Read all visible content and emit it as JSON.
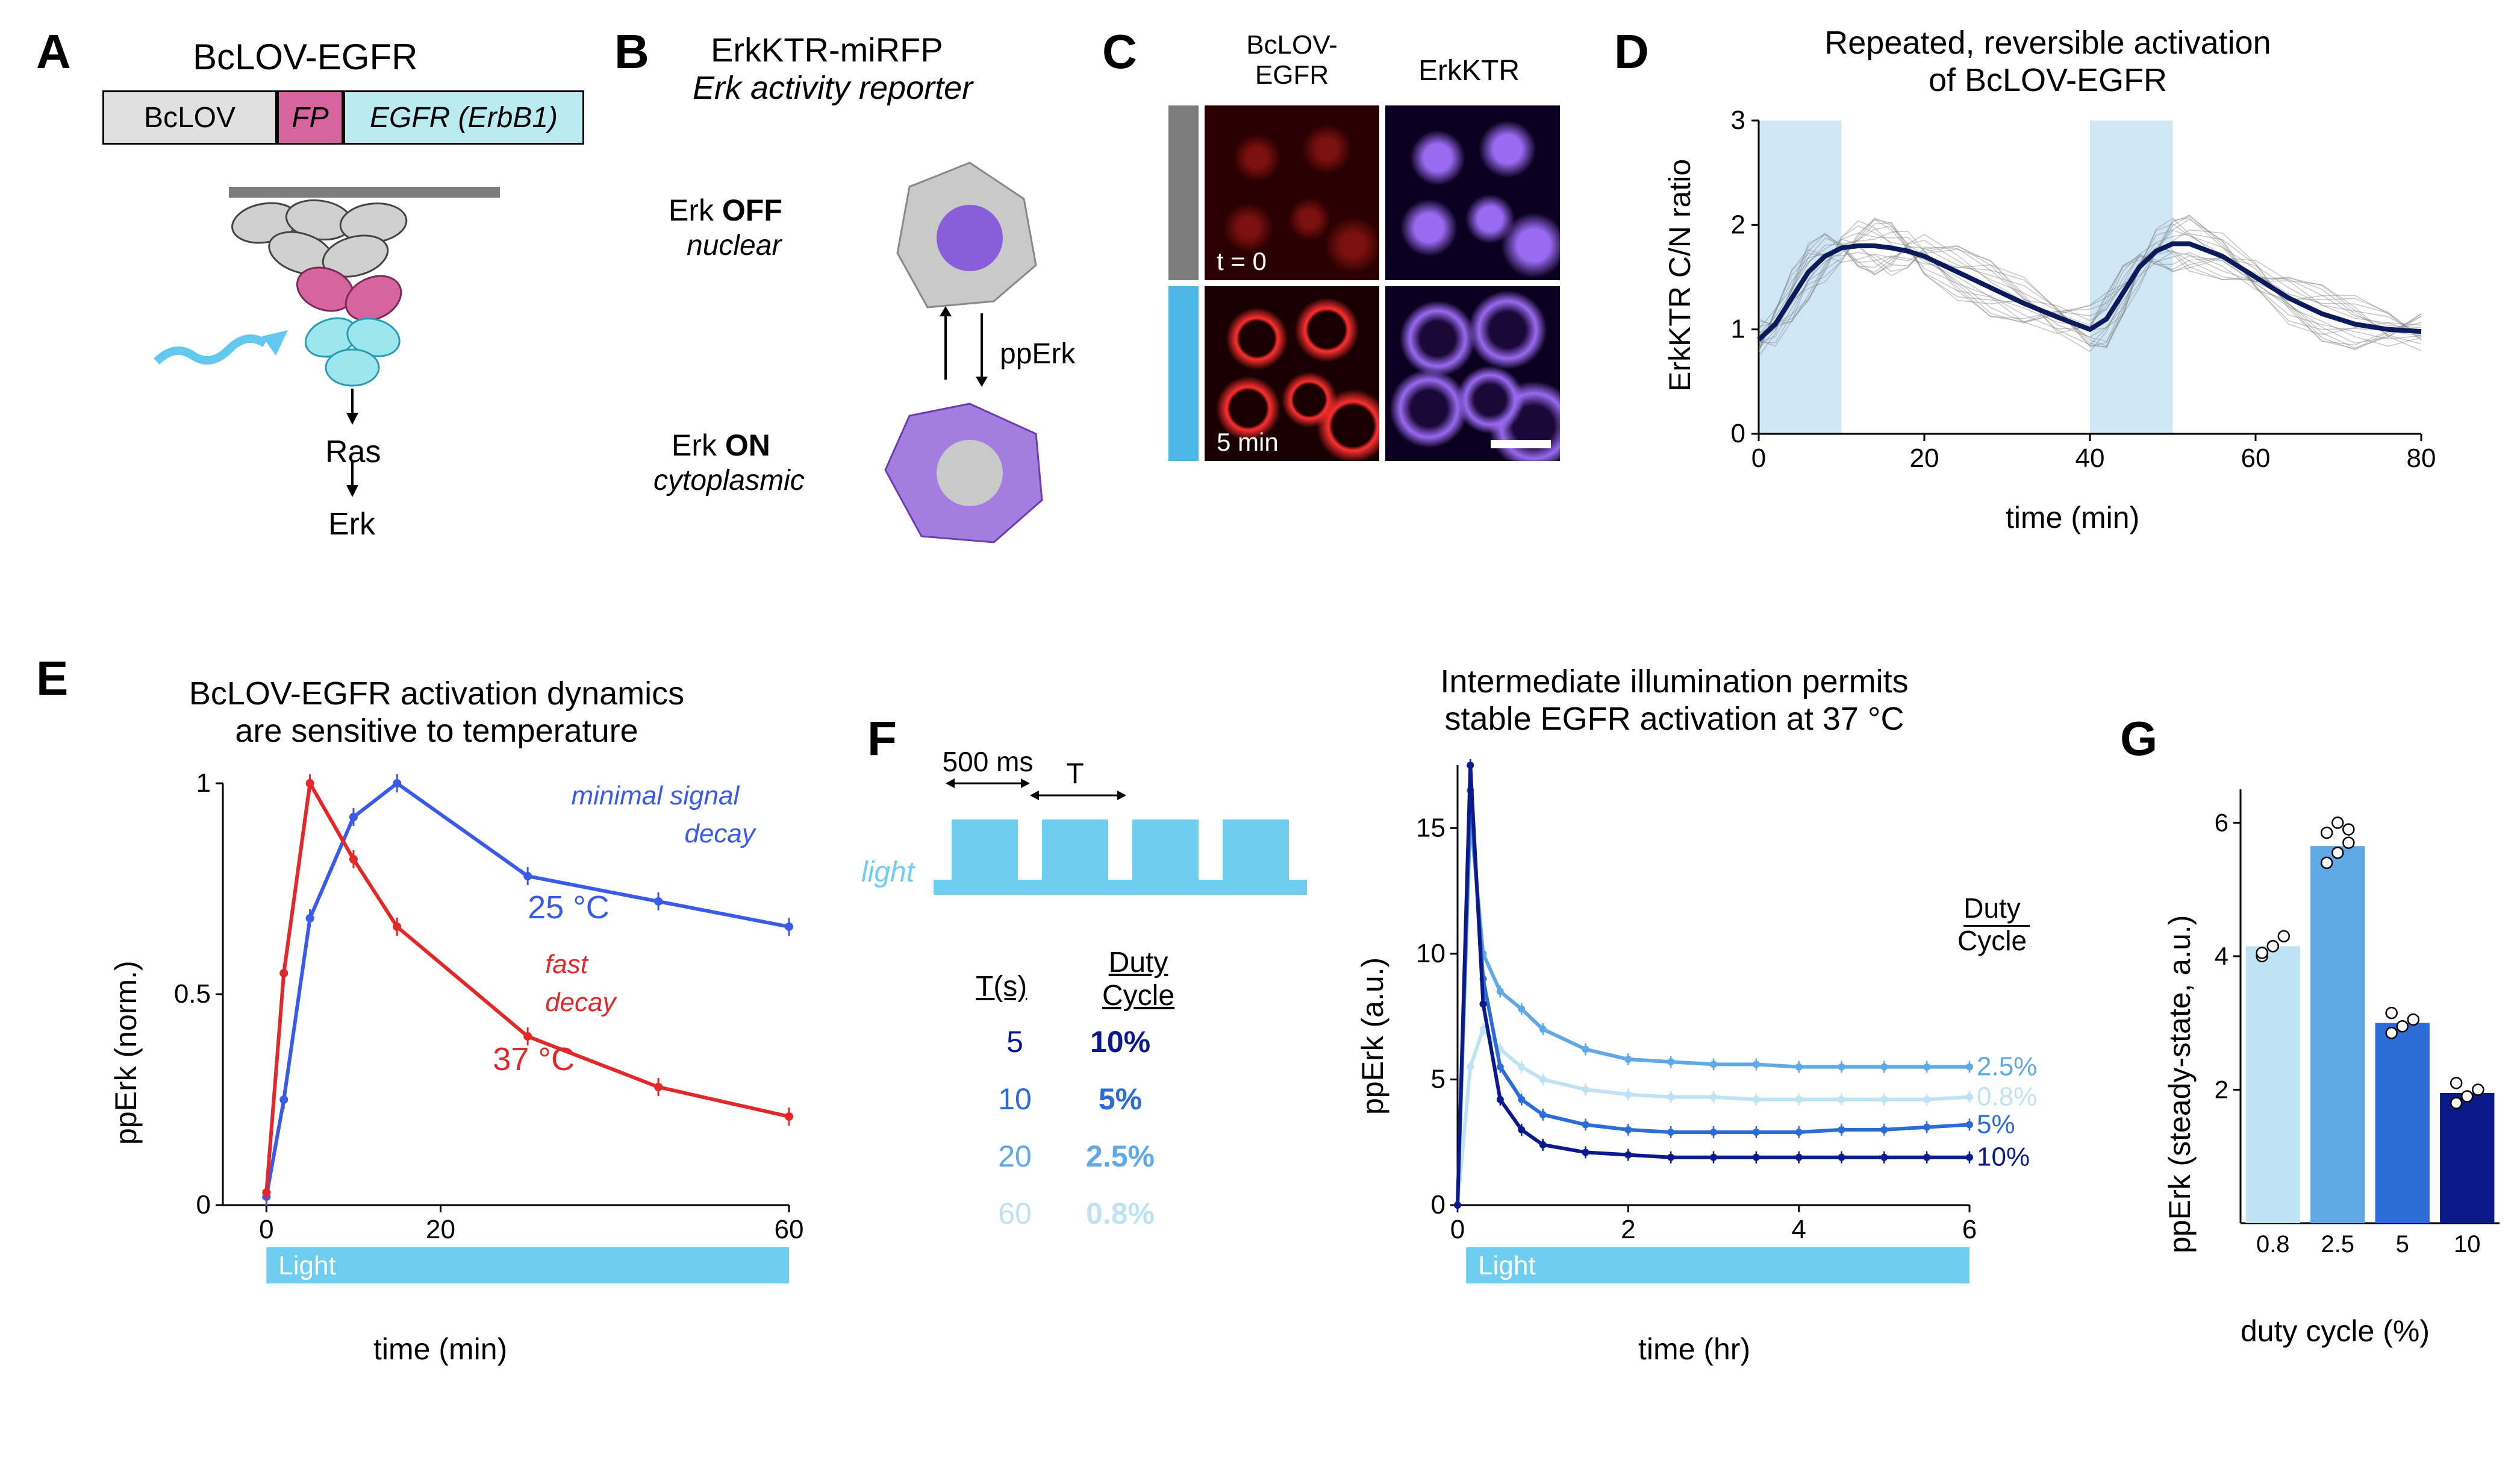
{
  "panelA": {
    "label": "A",
    "title": "BcLOV-EGFR",
    "construct": {
      "bclov": "BcLOV",
      "fp": "FP",
      "egfr": "EGFR (ErbB1)"
    },
    "cascade": [
      "Ras",
      "Erk"
    ],
    "colors": {
      "bclov_ellipse": "#d0d0d0",
      "fp_ellipse": "#d6649e",
      "egfr_ellipse": "#9ce6ef",
      "arrow": "#62c8ee",
      "membrane": "#7d7d7d",
      "pathway_text": "#000000"
    }
  },
  "panelB": {
    "label": "B",
    "title1": "ErkKTR-miRFP",
    "title2": "Erk activity reporter",
    "off_label1": "Erk ",
    "off_bold": "OFF",
    "off_label2": "nuclear",
    "on_label1": "Erk ",
    "on_bold": "ON",
    "on_label2": "cytoplasmic",
    "pperk": "ppErk",
    "colors": {
      "cell_body": "#c9c9c9",
      "nucleus_purple": "#8a5ed8",
      "body_purple": "#a57de0",
      "nucleus_grey": "#c9c9c9"
    }
  },
  "panelC": {
    "label": "C",
    "col1": "BcLOV-\nEGFR",
    "col2": "ErkKTR",
    "t0": "t = 0",
    "t5": "5 min",
    "bar_dark": "#7d7d7d",
    "bar_light": "#4db8e8",
    "scalebar_color": "#ffffff"
  },
  "panelD": {
    "label": "D",
    "title": "Repeated, reversible activation\nof BcLOV-EGFR",
    "ylabel": "ErkKTR C/N ratio",
    "xlabel": "time (min)",
    "yticks": [
      "0",
      "1",
      "2",
      "3"
    ],
    "xticks": [
      "0",
      "20",
      "40",
      "60",
      "80"
    ],
    "xlim": [
      0,
      80
    ],
    "ylim": [
      0,
      3
    ],
    "stim_windows": [
      [
        0,
        10
      ],
      [
        40,
        50
      ]
    ],
    "mean_line_color": "#0a1a5a",
    "trace_color": "#808080",
    "stim_color": "#cfe6f7",
    "mean_trace_x": [
      0,
      2,
      4,
      6,
      8,
      10,
      12,
      14,
      16,
      18,
      20,
      24,
      28,
      32,
      36,
      40,
      42,
      44,
      46,
      48,
      50,
      52,
      56,
      60,
      64,
      68,
      72,
      76,
      80
    ],
    "mean_trace_y": [
      0.9,
      1.05,
      1.3,
      1.55,
      1.7,
      1.78,
      1.8,
      1.8,
      1.78,
      1.75,
      1.7,
      1.55,
      1.4,
      1.25,
      1.12,
      1.0,
      1.1,
      1.35,
      1.6,
      1.75,
      1.82,
      1.82,
      1.7,
      1.5,
      1.3,
      1.15,
      1.05,
      1.0,
      0.98
    ]
  },
  "panelE": {
    "label": "E",
    "title": "BcLOV-EGFR activation dynamics\nare sensitive to temperature",
    "ylabel": "ppErk (norm.)",
    "xlabel": "time (min)",
    "yticks": [
      "0",
      "0.5",
      "1"
    ],
    "xticks": [
      "0",
      "20",
      "60"
    ],
    "xlim": [
      -5,
      60
    ],
    "ylim": [
      0,
      1
    ],
    "light_label": "Light",
    "light_color": "#6fcef0",
    "series": [
      {
        "label": "25 °C",
        "annot": "minimal signal\ndecay",
        "color": "#3a5ae8",
        "x": [
          0,
          2,
          5,
          10,
          15,
          30,
          45,
          60
        ],
        "y": [
          0.02,
          0.25,
          0.68,
          0.92,
          1.0,
          0.78,
          0.72,
          0.66
        ]
      },
      {
        "label": "37 °C",
        "annot": "fast\ndecay",
        "color": "#e22828",
        "x": [
          0,
          2,
          5,
          10,
          15,
          30,
          45,
          60
        ],
        "y": [
          0.03,
          0.55,
          1.0,
          0.82,
          0.66,
          0.4,
          0.28,
          0.21
        ]
      }
    ]
  },
  "panelF": {
    "label": "F",
    "pulse_label": "500 ms",
    "T_label": "T",
    "light_label_left": "light",
    "table_headers": [
      "T(s)",
      "Duty\nCycle"
    ],
    "table_rows": [
      {
        "T": "5",
        "dc": "10%",
        "color": "#0a1a8a"
      },
      {
        "T": "10",
        "dc": "5%",
        "color": "#2b6cd6"
      },
      {
        "T": "20",
        "dc": "2.5%",
        "color": "#5fa9e6"
      },
      {
        "T": "60",
        "dc": "0.8%",
        "color": "#bfe3f2"
      }
    ],
    "pulse_color": "#6fcef0",
    "chart_title": "Intermediate illumination permits\nstable EGFR activation at 37 °C",
    "ylabel": "ppErk (a.u.)",
    "xlabel": "time (hr)",
    "yticks": [
      "0",
      "5",
      "10",
      "15"
    ],
    "xticks": [
      "0",
      "2",
      "4",
      "6"
    ],
    "xlim": [
      0,
      6
    ],
    "ylim": [
      0,
      17.5
    ],
    "light_label": "Light",
    "duty_label": "Duty\nCycle",
    "series": [
      {
        "label": "2.5%",
        "color": "#5fa9e6",
        "x": [
          0,
          0.15,
          0.3,
          0.5,
          0.75,
          1,
          1.5,
          2,
          2.5,
          3,
          3.5,
          4,
          4.5,
          5,
          5.5,
          6
        ],
        "y": [
          0,
          15.5,
          10,
          8.5,
          7.8,
          7.0,
          6.2,
          5.8,
          5.7,
          5.6,
          5.6,
          5.5,
          5.5,
          5.5,
          5.5,
          5.5
        ]
      },
      {
        "label": "0.8%",
        "color": "#bfe3f2",
        "x": [
          0,
          0.15,
          0.3,
          0.5,
          0.75,
          1,
          1.5,
          2,
          2.5,
          3,
          3.5,
          4,
          4.5,
          5,
          5.5,
          6
        ],
        "y": [
          0,
          5.5,
          7,
          6.2,
          5.5,
          5.0,
          4.6,
          4.4,
          4.3,
          4.3,
          4.2,
          4.2,
          4.2,
          4.2,
          4.2,
          4.3
        ]
      },
      {
        "label": "5%",
        "color": "#2b6cd6",
        "x": [
          0,
          0.15,
          0.3,
          0.5,
          0.75,
          1,
          1.5,
          2,
          2.5,
          3,
          3.5,
          4,
          4.5,
          5,
          5.5,
          6
        ],
        "y": [
          0,
          16.5,
          9,
          5.5,
          4.2,
          3.6,
          3.2,
          3.0,
          2.9,
          2.9,
          2.9,
          2.9,
          3.0,
          3.0,
          3.1,
          3.2
        ]
      },
      {
        "label": "10%",
        "color": "#0a1a8a",
        "x": [
          0,
          0.15,
          0.3,
          0.5,
          0.75,
          1,
          1.5,
          2,
          2.5,
          3,
          3.5,
          4,
          4.5,
          5,
          5.5,
          6
        ],
        "y": [
          0,
          17.5,
          8,
          4.2,
          3.0,
          2.4,
          2.1,
          2.0,
          1.9,
          1.9,
          1.9,
          1.9,
          1.9,
          1.9,
          1.9,
          1.9
        ]
      }
    ]
  },
  "panelG": {
    "label": "G",
    "ylabel": "ppErk (steady-state, a.u.)",
    "xlabel": "duty cycle (%)",
    "yticks": [
      "2",
      "4",
      "6"
    ],
    "ylim": [
      0,
      6.5
    ],
    "bars": [
      {
        "x": "0.8",
        "val": 4.15,
        "color": "#bfe3f2",
        "pts": [
          4.0,
          4.15,
          4.3,
          4.05
        ]
      },
      {
        "x": "2.5",
        "val": 5.65,
        "color": "#5fa9e6",
        "pts": [
          5.4,
          5.55,
          5.7,
          5.85,
          6.0,
          5.9
        ]
      },
      {
        "x": "5",
        "val": 3.0,
        "color": "#2b6cd6",
        "pts": [
          2.85,
          2.95,
          3.05,
          3.15
        ]
      },
      {
        "x": "10",
        "val": 1.95,
        "color": "#0a1a8a",
        "pts": [
          1.8,
          1.9,
          2.0,
          2.1
        ]
      }
    ]
  }
}
